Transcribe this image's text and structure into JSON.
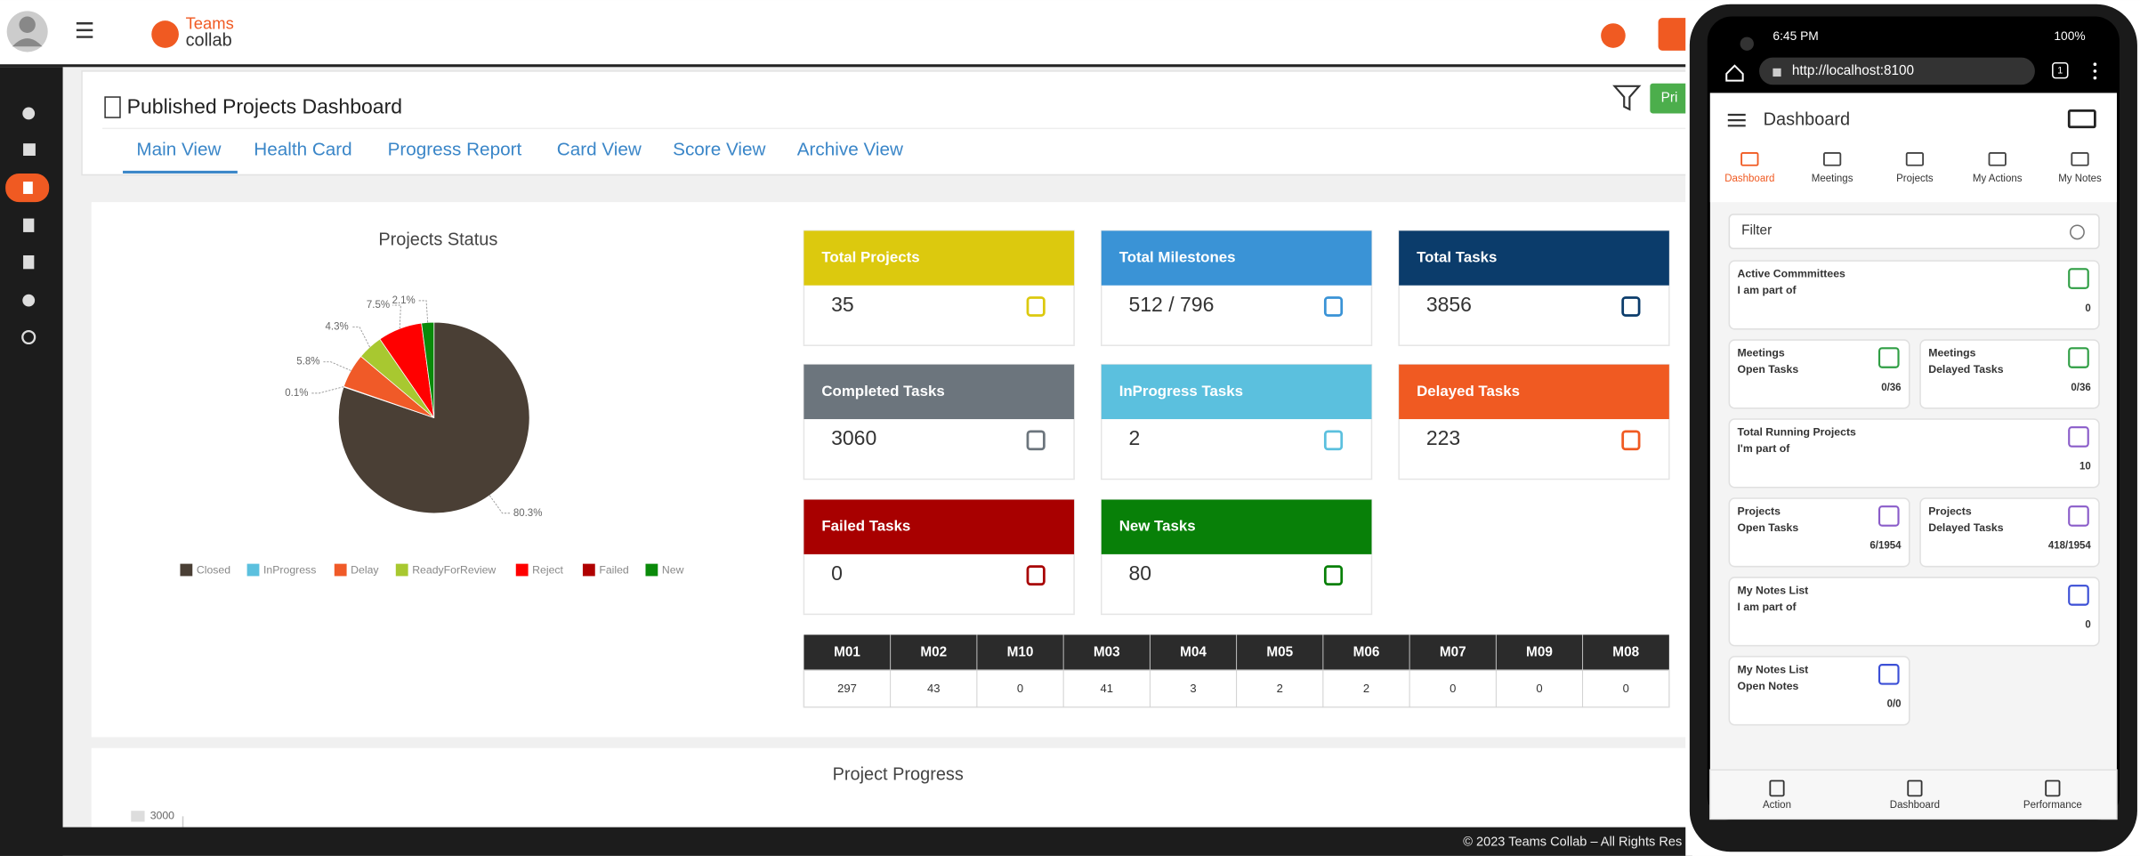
{
  "header": {
    "logo_line1": "Teams",
    "logo_line2": "collab"
  },
  "page_title": "Published Projects Dashboard",
  "print_button": "Pri",
  "tabs": [
    "Main View",
    "Health Card",
    "Progress Report",
    "Card View",
    "Score View",
    "Archive View"
  ],
  "chart_data": {
    "type": "pie",
    "title": "Projects Status",
    "categories": [
      "Closed",
      "InProgress",
      "Delay",
      "ReadyForReview",
      "Reject",
      "Failed",
      "New"
    ],
    "values": [
      80.3,
      0.1,
      5.8,
      4.3,
      7.5,
      0,
      2.1
    ],
    "value_labels": [
      "80.3%",
      "0.1%",
      "5.8%",
      "4.3%",
      "7.5%",
      null,
      "2.1%"
    ],
    "colors": [
      "#4a3f35",
      "#5bc0de",
      "#f05a28",
      "#a8c830",
      "#ff0000",
      "#b00000",
      "#0a8a0a"
    ],
    "legend": "bottom"
  },
  "cards": [
    {
      "title": "Total Projects",
      "value": 35,
      "color": "#dcc90e"
    },
    {
      "title": "Total Milestones",
      "value": "512 / 796",
      "color": "#3a93d6"
    },
    {
      "title": "Total Tasks",
      "value": 3856,
      "color": "#0b3c6b"
    },
    {
      "title": "Completed Tasks",
      "value": 3060,
      "color": "#6c757d"
    },
    {
      "title": "InProgress Tasks",
      "value": 2,
      "color": "#5bc0de"
    },
    {
      "title": "Delayed Tasks",
      "value": 223,
      "color": "#f05a22"
    },
    {
      "title": "Failed Tasks",
      "value": 0,
      "color": "#a80000"
    },
    {
      "title": "New Tasks",
      "value": 80,
      "color": "#088008"
    }
  ],
  "milestones": {
    "columns": [
      "M01",
      "M02",
      "M10",
      "M03",
      "M04",
      "M05",
      "M06",
      "M07",
      "M09",
      "M08"
    ],
    "values": [
      297,
      43,
      0,
      41,
      3,
      2,
      2,
      0,
      0,
      0
    ]
  },
  "progress": {
    "title": "Project Progress",
    "tick": 3000
  },
  "footer": "© 2023 Teams Collab – All Rights Res",
  "phone": {
    "time": "6:45 PM",
    "battery": "100%",
    "url": "http://localhost:8100",
    "tab_count": "1",
    "title": "Dashboard",
    "nav": [
      "Dashboard",
      "Meetings",
      "Projects",
      "My Actions",
      "My Notes"
    ],
    "filter": "Filter",
    "cards": [
      {
        "lines": [
          "Active Commmittees",
          "I am part of"
        ],
        "value": "0"
      },
      {
        "lines": [
          "Meetings",
          "Open Tasks"
        ],
        "value": "0/36"
      },
      {
        "lines": [
          "Meetings",
          "Delayed Tasks"
        ],
        "value": "0/36"
      },
      {
        "lines": [
          "Total Running Projects",
          "I'm part of"
        ],
        "value": "10"
      },
      {
        "lines": [
          "Projects",
          "Open Tasks"
        ],
        "value": "6/1954"
      },
      {
        "lines": [
          "Projects",
          "Delayed Tasks"
        ],
        "value": "418/1954"
      },
      {
        "lines": [
          "My Notes List",
          "I am part of"
        ],
        "value": "0"
      },
      {
        "lines": [
          "My Notes List",
          "Open Notes"
        ],
        "value": "0/0"
      }
    ],
    "bottom_nav": [
      "Action",
      "Dashboard",
      "Performance"
    ]
  }
}
